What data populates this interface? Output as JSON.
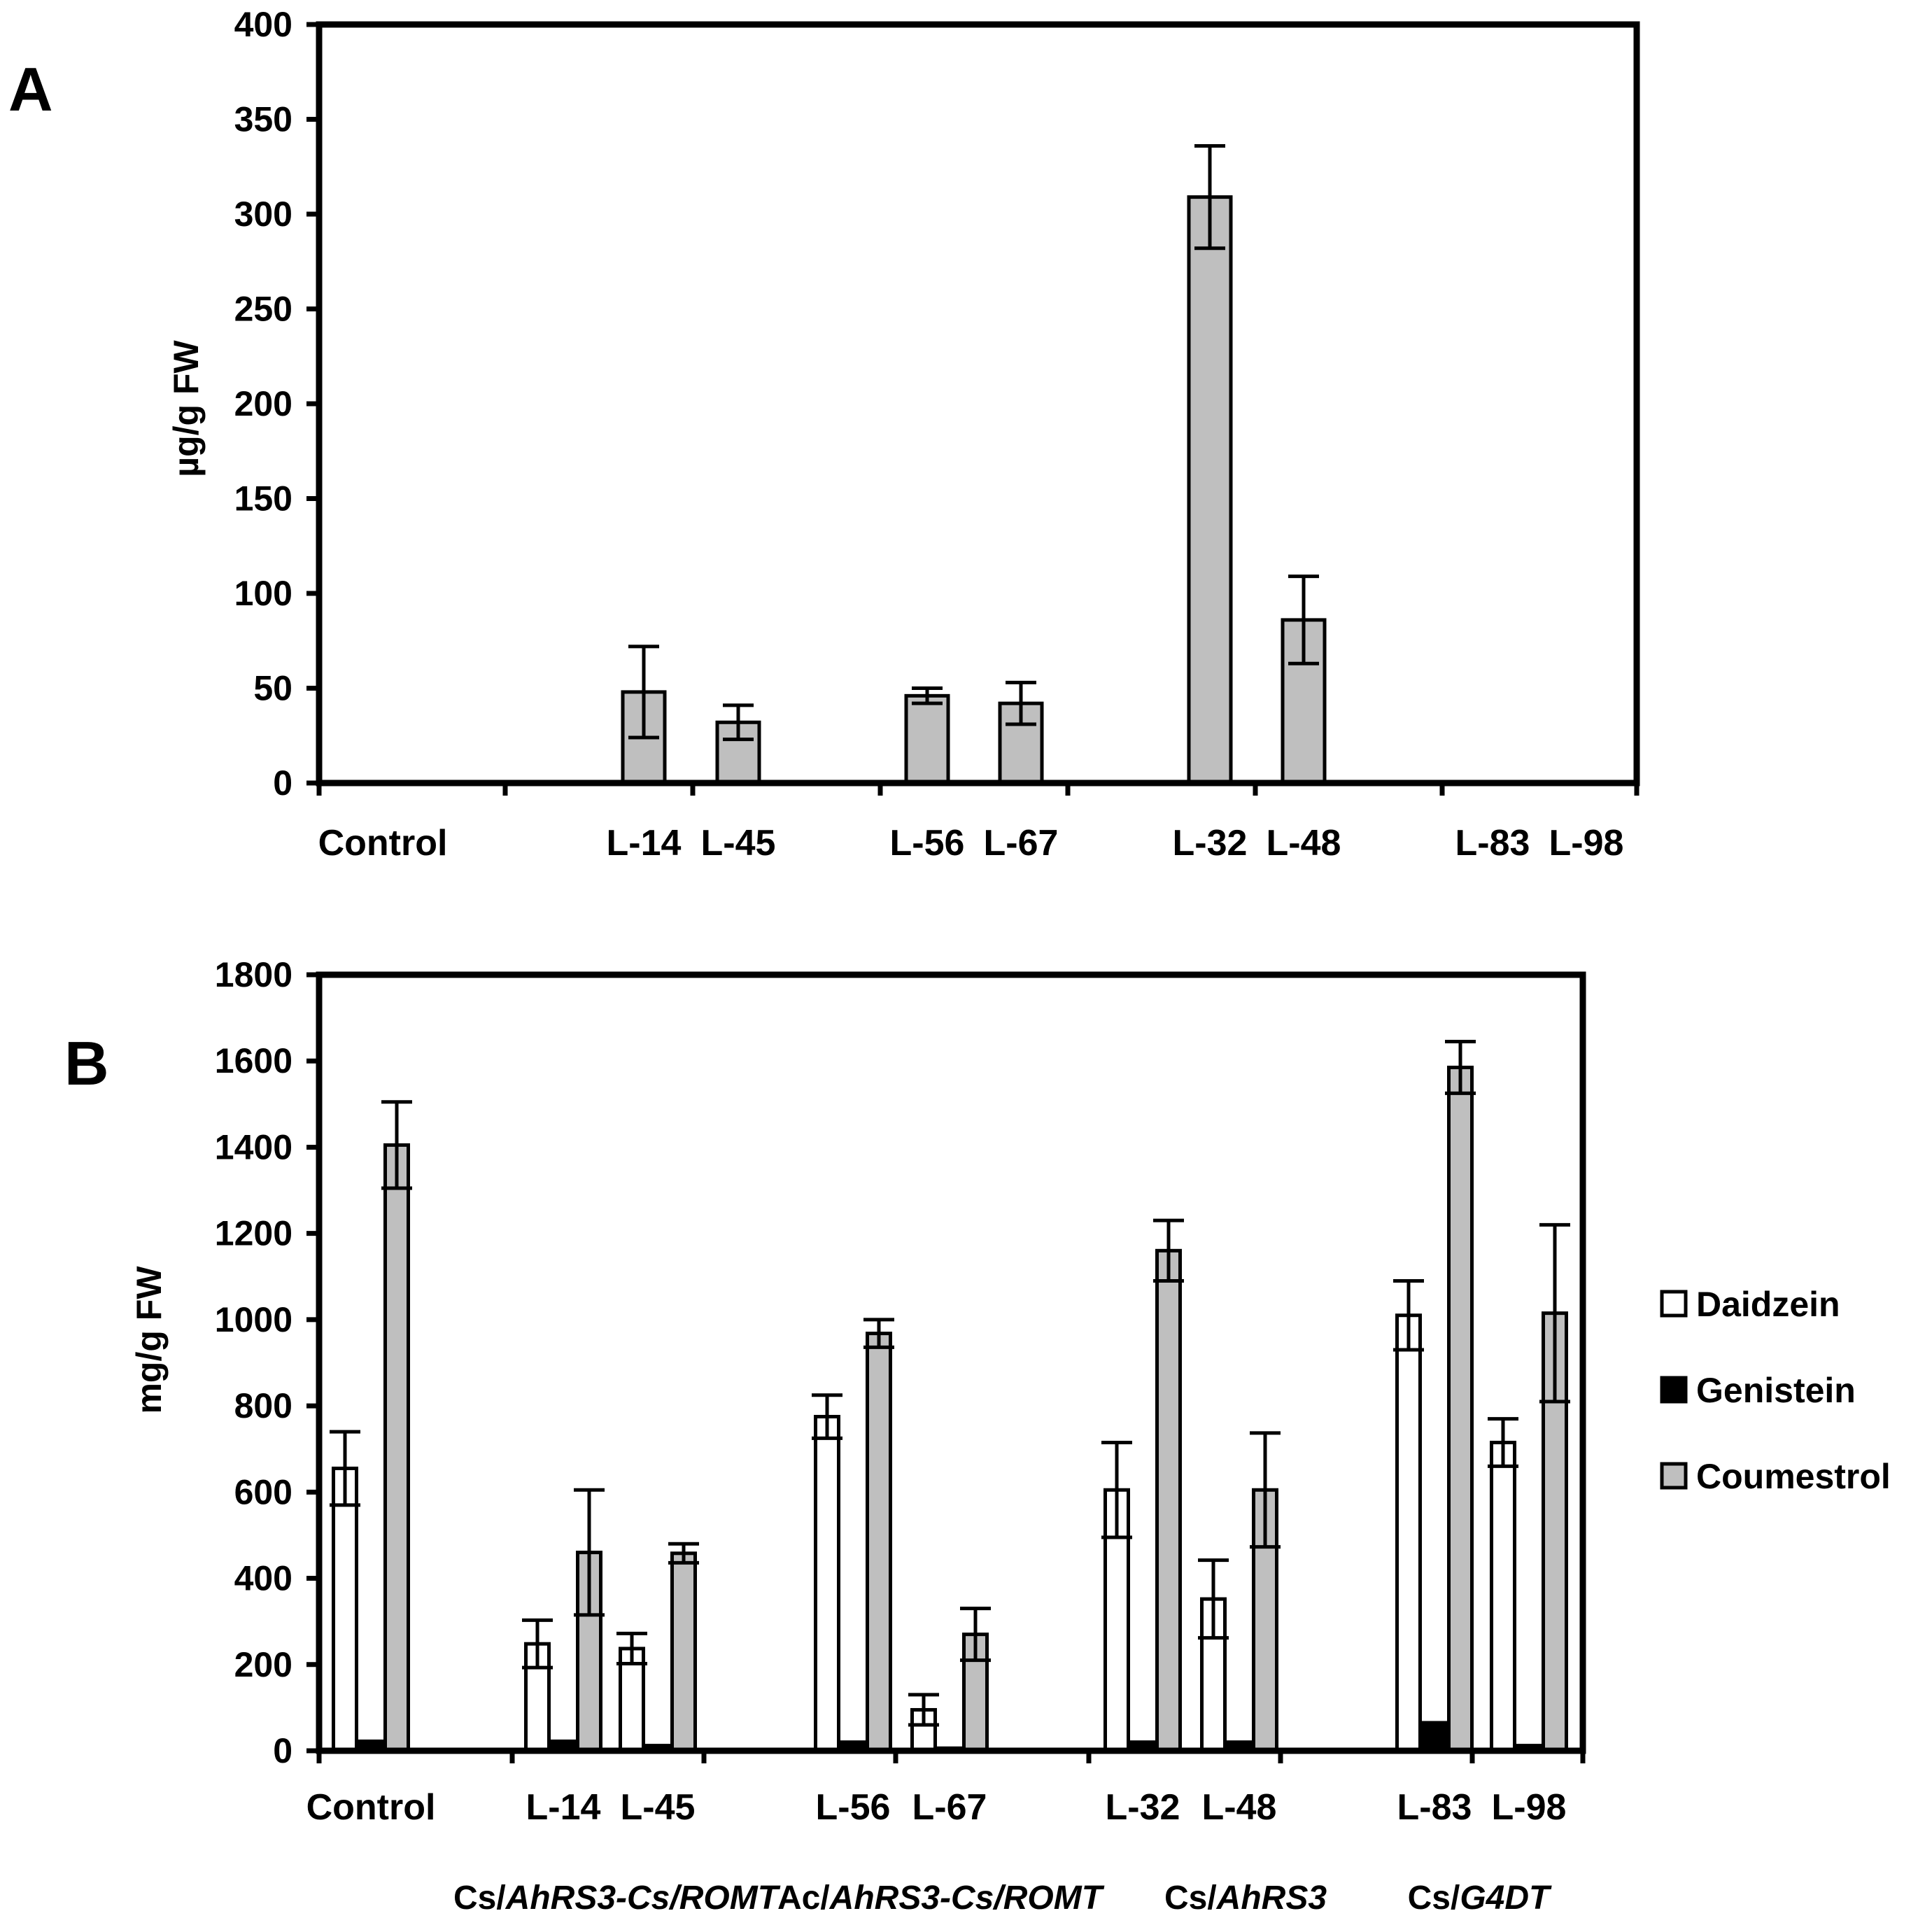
{
  "colors": {
    "daidzein": "#ffffff",
    "genistein": "#000000",
    "coumestrol": "#bfbfbf",
    "stroke": "#000000"
  },
  "panel_labels": [
    "A",
    "B"
  ],
  "chart_data": [
    {
      "type": "bar",
      "panel": "A",
      "ylabel": "µg/g FW",
      "xlabel": "",
      "ylim": [
        0,
        400
      ],
      "yticks": [
        0,
        50,
        100,
        150,
        200,
        250,
        300,
        350,
        400
      ],
      "grid": false,
      "categories": [
        "Control",
        "L-14",
        "L-45",
        "L-56",
        "L-67",
        "L-32",
        "L-48",
        "L-83",
        "L-98"
      ],
      "series": [
        {
          "name": "Coumestrol",
          "color": "#bfbfbf",
          "values": [
            0,
            48,
            32,
            46,
            42,
            309,
            86,
            0,
            0
          ],
          "errors": [
            0,
            24,
            9,
            4,
            11,
            27,
            23,
            0,
            0
          ]
        }
      ]
    },
    {
      "type": "bar",
      "panel": "B",
      "ylabel": "mg/g FW",
      "xlabel": "",
      "ylim": [
        0,
        1800
      ],
      "yticks": [
        0,
        200,
        400,
        600,
        800,
        1000,
        1200,
        1400,
        1600,
        1800
      ],
      "grid": false,
      "legend_position": "right",
      "categories": [
        "Control",
        "L-14",
        "L-45",
        "L-56",
        "L-67",
        "L-32",
        "L-48",
        "L-83",
        "L-98"
      ],
      "groups": [
        {
          "label_prefix": "Cs/",
          "label_italic": "AhRS3-Cs/ROMT",
          "categories": [
            "L-14",
            "L-45"
          ]
        },
        {
          "label_prefix": "Ac/",
          "label_italic": "AhRS3-Cs/ROMT",
          "categories": [
            "L-56",
            "L-67"
          ]
        },
        {
          "label_prefix": "Cs/",
          "label_italic": "AhRS3",
          "categories": [
            "L-32",
            "L-48"
          ]
        },
        {
          "label_prefix": "Cs/",
          "label_italic": "G4DT",
          "categories": [
            "L-83",
            "L-98"
          ]
        }
      ],
      "series": [
        {
          "name": "Daidzein",
          "color": "#ffffff",
          "values": [
            655,
            248,
            237,
            775,
            95,
            605,
            352,
            1010,
            715
          ],
          "errors": [
            85,
            55,
            35,
            50,
            35,
            110,
            90,
            80,
            55
          ]
        },
        {
          "name": "Genistein",
          "color": "#000000",
          "values": [
            22,
            22,
            12,
            20,
            6,
            20,
            20,
            65,
            12
          ],
          "errors": [
            0,
            0,
            0,
            0,
            0,
            0,
            0,
            0,
            0
          ]
        },
        {
          "name": "Coumestrol",
          "color": "#bfbfbf",
          "values": [
            1405,
            460,
            458,
            968,
            270,
            1160,
            605,
            1585,
            1015
          ],
          "errors": [
            100,
            145,
            22,
            32,
            60,
            70,
            132,
            60,
            205
          ]
        }
      ]
    }
  ]
}
